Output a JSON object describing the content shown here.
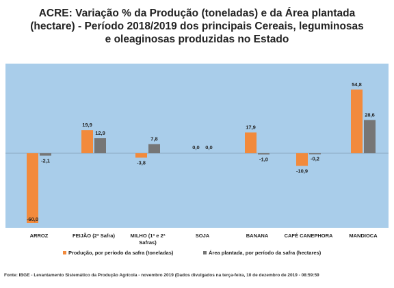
{
  "title_lines": [
    "ACRE: Variação % da Produção (toneladas) e da Área plantada",
    "(hectare) - Período 2018/2019 dos principais Cereais, leguminosas",
    "e oleaginosas produzidas no Estado"
  ],
  "source": "Fonte: IBGE - Levantamento Sistemático da Produção Agrícola - novembro 2019 (Dados divulgados na terça-feira, 10 de dezembro de 2019 - 08:59:59",
  "colors": {
    "background": "#a9cdea",
    "production": "#f28a3c",
    "area": "#767676"
  },
  "chart_data": {
    "type": "bar",
    "categories": [
      "ARROZ",
      "FEIJÃO (2ª Safra)",
      "MILHO (1ª e 2ª Safras)",
      "SOJA",
      "BANANA",
      "CAFÉ CANEPHORA",
      "MANDIOCA"
    ],
    "category_lines": [
      [
        "ARROZ"
      ],
      [
        "FEIJÃO (2ª Safra)"
      ],
      [
        "MILHO (1ª e 2ª",
        "Safras)"
      ],
      [
        "SOJA"
      ],
      [
        "BANANA"
      ],
      [
        "CAFÉ CANEPHORA"
      ],
      [
        "MANDIOCA"
      ]
    ],
    "series": [
      {
        "name": "Produção, por período da safra  (toneladas)",
        "values": [
          -60.0,
          19.9,
          -3.8,
          0.0,
          17.9,
          -10.9,
          54.8
        ],
        "labels": [
          "-60,0",
          "19,9",
          "-3,8",
          "0,0",
          "17,9",
          "-10,9",
          "54,8"
        ]
      },
      {
        "name": "Área plantada, por período da safra (hectares)",
        "values": [
          -2.1,
          12.9,
          7.8,
          0.0,
          -1.0,
          -0.2,
          28.6
        ],
        "labels": [
          "-2,1",
          "12,9",
          "7,8",
          "0,0",
          "-1,0",
          "-0,2",
          "28,6"
        ]
      }
    ],
    "ylim": [
      -65,
      60
    ],
    "grid": false,
    "legend": "bottom"
  }
}
